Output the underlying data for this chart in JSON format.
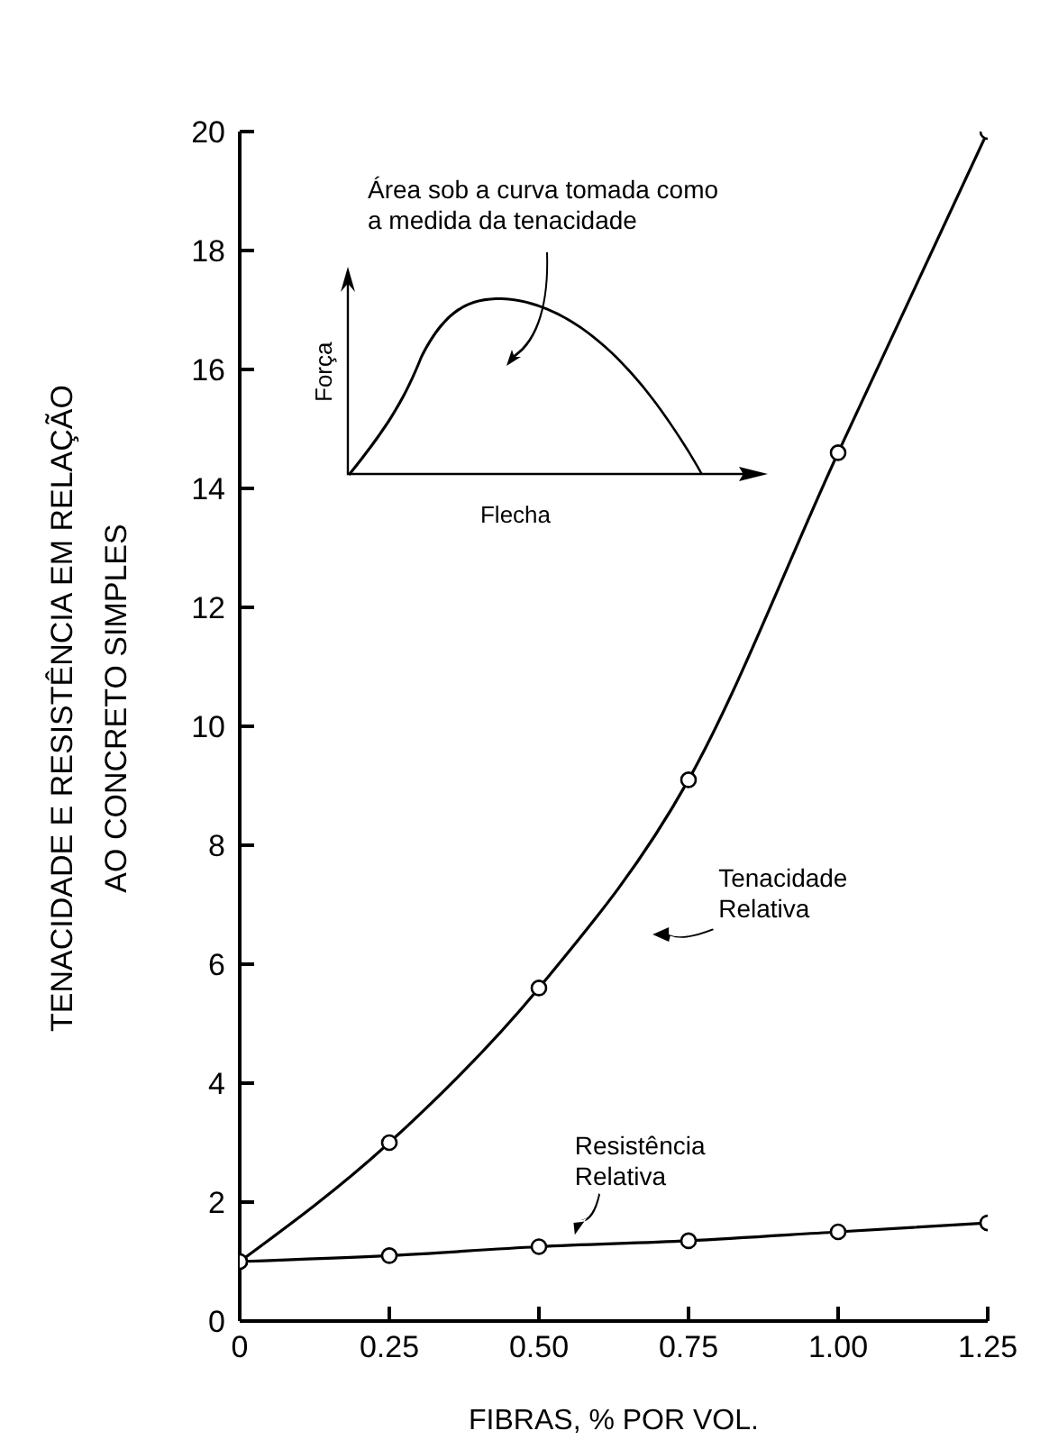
{
  "chart_data": {
    "type": "line",
    "xlabel": "FIBRAS, % POR VOL.",
    "ylabel": "TENACIDADE E RESISTÊNCIA EM RELAÇÃO\nAO CONCRETO SIMPLES",
    "x": [
      0,
      0.25,
      0.5,
      0.75,
      1.0,
      1.25
    ],
    "series": [
      {
        "name": "Tenacidade\nRelativa",
        "color": "#000000",
        "values": [
          1.0,
          3.0,
          5.6,
          9.1,
          14.6,
          20
        ]
      },
      {
        "name": "Resistência\nRelativa",
        "color": "#000000",
        "values": [
          1.0,
          1.1,
          1.25,
          1.35,
          1.5,
          1.65
        ]
      }
    ],
    "xlim": [
      0,
      1.25
    ],
    "xticks": [
      0,
      {
        "value": 0.25,
        "label": "0.25"
      },
      {
        "value": 0.5,
        "label": "0.50"
      },
      {
        "value": 0.75,
        "label": "0.75"
      },
      {
        "value": 1.0,
        "label": "1.00"
      },
      {
        "value": 1.25,
        "label": "1.25"
      }
    ],
    "ylim": [
      0,
      20
    ],
    "yticks": [
      0,
      2,
      4,
      6,
      8,
      10,
      12,
      14,
      16,
      18,
      20
    ],
    "annotations": [
      "Área sob a curva tomada como\na medida da tenacidade",
      "Força",
      "Flecha"
    ],
    "marker": "circle",
    "line_style": "solid"
  }
}
